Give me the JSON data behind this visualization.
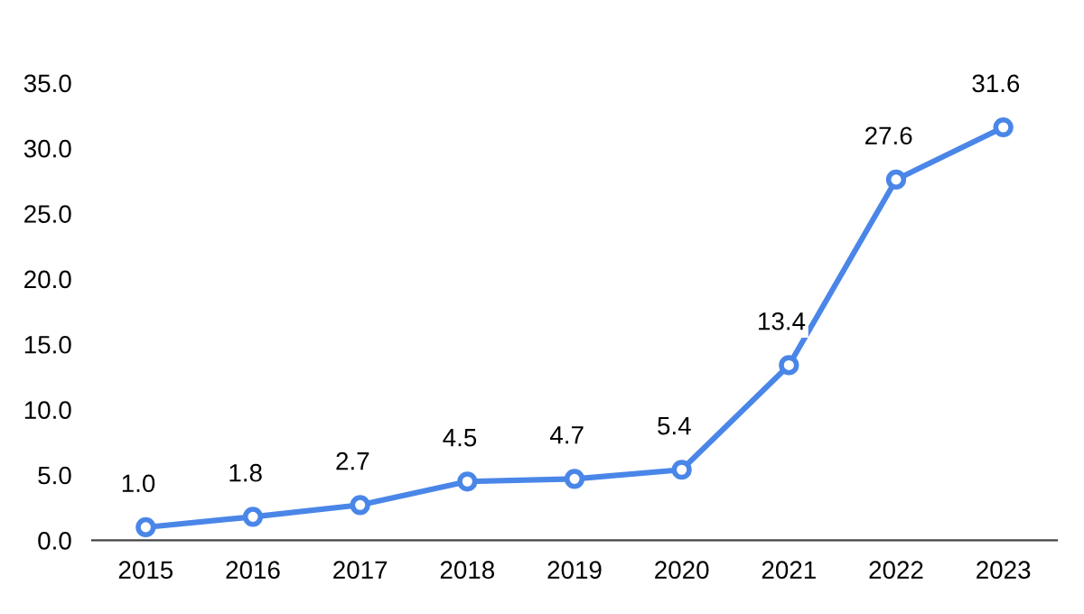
{
  "chart_data": {
    "type": "line",
    "categories": [
      "2015",
      "2016",
      "2017",
      "2018",
      "2019",
      "2020",
      "2021",
      "2022",
      "2023"
    ],
    "series": [
      {
        "color": "#4a86e8",
        "values": [
          1.0,
          1.8,
          2.7,
          4.5,
          4.7,
          5.4,
          13.4,
          27.6,
          31.6
        ],
        "value_labels": [
          "1.0",
          "1.8",
          "2.7",
          "4.5",
          "4.7",
          "5.4",
          "13.4",
          "27.6",
          "31.6"
        ]
      }
    ],
    "ylim": [
      0,
      35
    ],
    "yticks": [
      {
        "value": 0,
        "label": "0.0"
      },
      {
        "value": 5,
        "label": "5.0"
      },
      {
        "value": 10,
        "label": "10.0"
      },
      {
        "value": 15,
        "label": "15.0"
      },
      {
        "value": 20,
        "label": "20.0"
      },
      {
        "value": 25,
        "label": "25.0"
      },
      {
        "value": 30,
        "label": "30.0"
      },
      {
        "value": 35,
        "label": "35.0"
      }
    ],
    "marker": "circle",
    "line_style": "solid"
  }
}
